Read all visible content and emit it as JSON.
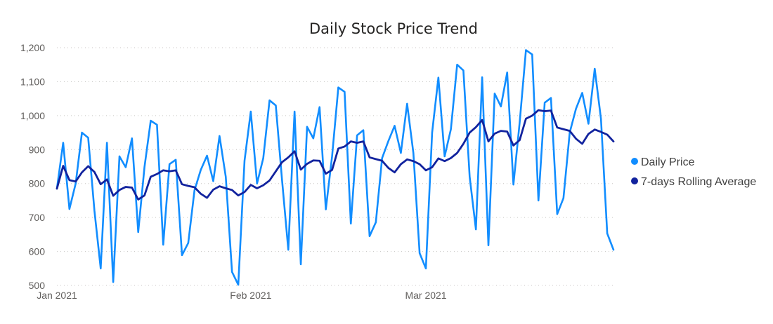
{
  "chart_data": {
    "type": "line",
    "title": "Daily Stock Price Trend",
    "xlabel": "",
    "ylabel": "",
    "ylim": [
      500,
      1200
    ],
    "yticks": [
      "500",
      "600",
      "700",
      "800",
      "900",
      "1,000",
      "1,100",
      "1,200"
    ],
    "ytick_values": [
      500,
      600,
      700,
      800,
      900,
      1000,
      1100,
      1200
    ],
    "xlim": [
      "2021-01-01",
      "2021-03-31"
    ],
    "xticks": [
      {
        "label": "Jan 2021",
        "date": "2021-01-01"
      },
      {
        "label": "Feb 2021",
        "date": "2021-02-01"
      },
      {
        "label": "Mar 2021",
        "date": "2021-03-01"
      }
    ],
    "grid": true,
    "legend_position": "right",
    "x": [
      "2021-01-01",
      "2021-01-02",
      "2021-01-03",
      "2021-01-04",
      "2021-01-05",
      "2021-01-06",
      "2021-01-07",
      "2021-01-08",
      "2021-01-09",
      "2021-01-10",
      "2021-01-11",
      "2021-01-12",
      "2021-01-13",
      "2021-01-14",
      "2021-01-15",
      "2021-01-16",
      "2021-01-17",
      "2021-01-18",
      "2021-01-19",
      "2021-01-20",
      "2021-01-21",
      "2021-01-22",
      "2021-01-23",
      "2021-01-24",
      "2021-01-25",
      "2021-01-26",
      "2021-01-27",
      "2021-01-28",
      "2021-01-29",
      "2021-01-30",
      "2021-01-31",
      "2021-02-01",
      "2021-02-02",
      "2021-02-03",
      "2021-02-04",
      "2021-02-05",
      "2021-02-06",
      "2021-02-07",
      "2021-02-08",
      "2021-02-09",
      "2021-02-10",
      "2021-02-11",
      "2021-02-12",
      "2021-02-13",
      "2021-02-14",
      "2021-02-15",
      "2021-02-16",
      "2021-02-17",
      "2021-02-18",
      "2021-02-19",
      "2021-02-20",
      "2021-02-21",
      "2021-02-22",
      "2021-02-23",
      "2021-02-24",
      "2021-02-25",
      "2021-02-26",
      "2021-02-27",
      "2021-02-28",
      "2021-03-01",
      "2021-03-02",
      "2021-03-03",
      "2021-03-04",
      "2021-03-05",
      "2021-03-06",
      "2021-03-07",
      "2021-03-08",
      "2021-03-09",
      "2021-03-10",
      "2021-03-11",
      "2021-03-12",
      "2021-03-13",
      "2021-03-14",
      "2021-03-15",
      "2021-03-16",
      "2021-03-17",
      "2021-03-18",
      "2021-03-19",
      "2021-03-20",
      "2021-03-21",
      "2021-03-22",
      "2021-03-23",
      "2021-03-24",
      "2021-03-25",
      "2021-03-26",
      "2021-03-27",
      "2021-03-28",
      "2021-03-29",
      "2021-03-30",
      "2021-03-31"
    ],
    "series": [
      {
        "name": "Daily Price",
        "color": "#118dff",
        "values": [
          785,
          920,
          725,
          800,
          950,
          935,
          720,
          550,
          920,
          510,
          880,
          848,
          933,
          657,
          848,
          985,
          973,
          620,
          857,
          870,
          589,
          625,
          780,
          840,
          882,
          807,
          940,
          820,
          540,
          502,
          867,
          1012,
          800,
          875,
          1045,
          1030,
          810,
          605,
          1012,
          562,
          967,
          933,
          1025,
          724,
          880,
          1083,
          1070,
          682,
          942,
          957,
          645,
          686,
          875,
          925,
          970,
          890,
          1035,
          890,
          595,
          550,
          950,
          1112,
          880,
          960,
          1150,
          1133,
          820,
          665,
          1113,
          618,
          1065,
          1027,
          1127,
          797,
          980,
          1193,
          1180,
          750,
          1038,
          1052,
          710,
          757,
          950,
          1020,
          1067,
          976,
          1138,
          990,
          653,
          605
        ]
      },
      {
        "name": "7-days Rolling Average",
        "color": "#12239e",
        "values": [
          785,
          852,
          810,
          806,
          833,
          851,
          834,
          798,
          812,
          764,
          781,
          790,
          788,
          753,
          765,
          820,
          828,
          839,
          836,
          839,
          798,
          793,
          789,
          770,
          758,
          782,
          792,
          786,
          781,
          765,
          775,
          796,
          786,
          795,
          809,
          836,
          863,
          877,
          895,
          841,
          858,
          868,
          867,
          829,
          840,
          903,
          909,
          924,
          920,
          924,
          877,
          872,
          867,
          846,
          833,
          857,
          871,
          866,
          857,
          839,
          848,
          874,
          866,
          875,
          890,
          917,
          950,
          966,
          987,
          924,
          947,
          955,
          953,
          912,
          928,
          991,
          1000,
          1016,
          1013,
          1015,
          965,
          960,
          955,
          932,
          917,
          946,
          959,
          952,
          944,
          924
        ]
      }
    ]
  }
}
